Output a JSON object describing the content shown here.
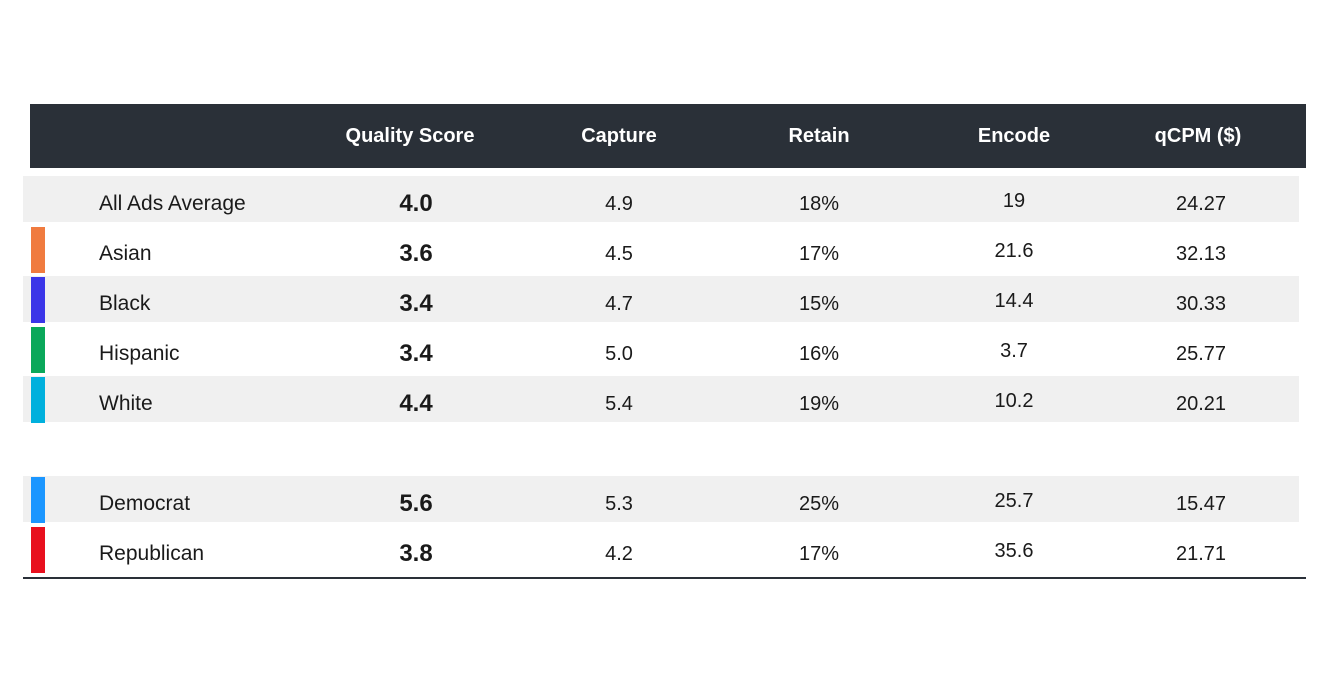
{
  "chart_data": {
    "type": "table",
    "columns": [
      "",
      "Quality Score",
      "Capture",
      "Retain",
      "Encode",
      "qCPM ($)"
    ],
    "groups": [
      {
        "rows": [
          {
            "label": "All Ads Average",
            "quality_score": "4.0",
            "capture": "4.9",
            "retain": "18%",
            "encode": "19",
            "qcpm": "24.27",
            "color": ""
          },
          {
            "label": "Asian",
            "quality_score": "3.6",
            "capture": "4.5",
            "retain": "17%",
            "encode": "21.6",
            "qcpm": "32.13",
            "color": "#f07b3f"
          },
          {
            "label": "Black",
            "quality_score": "3.4",
            "capture": "4.7",
            "retain": "15%",
            "encode": "14.4",
            "qcpm": "30.33",
            "color": "#3b35e8"
          },
          {
            "label": "Hispanic",
            "quality_score": "3.4",
            "capture": "5.0",
            "retain": "16%",
            "encode": "3.7",
            "qcpm": "25.77",
            "color": "#0aa85a"
          },
          {
            "label": "White",
            "quality_score": "4.4",
            "capture": "5.4",
            "retain": "19%",
            "encode": "10.2",
            "qcpm": "20.21",
            "color": "#00b0dd"
          }
        ]
      },
      {
        "rows": [
          {
            "label": "Democrat",
            "quality_score": "5.6",
            "capture": "5.3",
            "retain": "25%",
            "encode": "25.7",
            "qcpm": "15.47",
            "color": "#1b96ff"
          },
          {
            "label": "Republican",
            "quality_score": "3.8",
            "capture": "4.2",
            "retain": "17%",
            "encode": "35.6",
            "qcpm": "21.71",
            "color": "#e8101e"
          }
        ]
      }
    ]
  },
  "colors": {
    "header_bg": "#2a3038",
    "header_text": "#ffffff",
    "row_shaded": "#f0f0f0",
    "row_plain": "#ffffff"
  }
}
